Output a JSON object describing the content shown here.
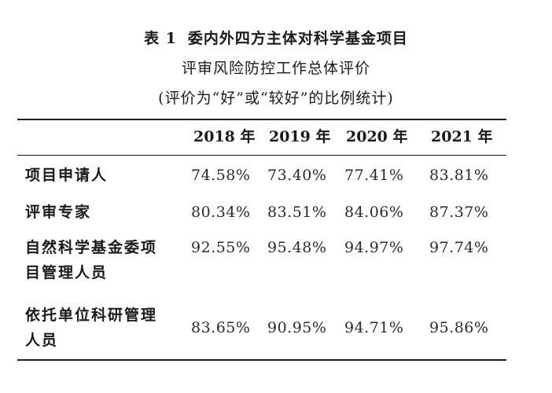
{
  "title": {
    "label": "表 1",
    "line1": "委内外四方主体对科学基金项目",
    "line2": "评审风险防控工作总体评价",
    "line3": "(评价为“好”或“较好”的比例统计)"
  },
  "table": {
    "columns": [
      "2018 年",
      "2019 年",
      "2020 年",
      "2021 年"
    ],
    "rows": [
      {
        "label_lines": [
          "项目申请人"
        ],
        "values": [
          "74.58%",
          "73.40%",
          "77.41%",
          "83.81%"
        ]
      },
      {
        "label_lines": [
          "评审专家"
        ],
        "values": [
          "80.34%",
          "83.51%",
          "84.06%",
          "87.37%"
        ]
      },
      {
        "label_lines": [
          "自然科学基金委项",
          "目管理人员"
        ],
        "values": [
          "92.55%",
          "95.48%",
          "94.97%",
          "97.74%"
        ]
      },
      {
        "label_lines": [
          "依托单位科研管理",
          "人员"
        ],
        "values": [
          "83.65%",
          "90.95%",
          "94.71%",
          "95.86%"
        ]
      }
    ]
  }
}
